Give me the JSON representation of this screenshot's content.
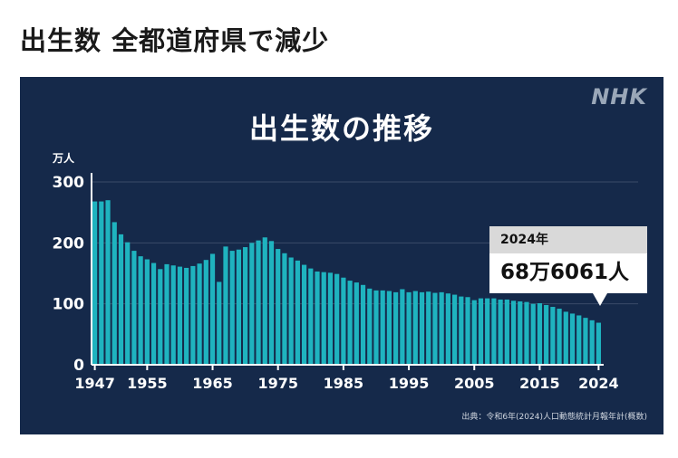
{
  "headline": "出生数 全都道府県で減少",
  "logo": "NHK",
  "source": "出典：令和6年(2024)人口動態統計月報年計(概数)",
  "colors": {
    "panel_bg": "#15294a",
    "bar": "#1fb3bf",
    "grid": "#3a4b68",
    "axis_text": "#ffffff"
  },
  "callout": {
    "year": "2024年",
    "value": "68万6061人"
  },
  "chart_data": {
    "type": "bar",
    "title": "出生数の推移",
    "ylabel": "万人",
    "xlabel": "",
    "ylim": [
      0,
      300
    ],
    "yticks": [
      0,
      100,
      200,
      300
    ],
    "xtick_labels": [
      "1947",
      "1955",
      "1965",
      "1975",
      "1985",
      "1995",
      "2005",
      "2015",
      "2024"
    ],
    "grid": true,
    "categories": [
      1947,
      1948,
      1949,
      1950,
      1951,
      1952,
      1953,
      1954,
      1955,
      1956,
      1957,
      1958,
      1959,
      1960,
      1961,
      1962,
      1963,
      1964,
      1965,
      1966,
      1967,
      1968,
      1969,
      1970,
      1971,
      1972,
      1973,
      1974,
      1975,
      1976,
      1977,
      1978,
      1979,
      1980,
      1981,
      1982,
      1983,
      1984,
      1985,
      1986,
      1987,
      1988,
      1989,
      1990,
      1991,
      1992,
      1993,
      1994,
      1995,
      1996,
      1997,
      1998,
      1999,
      2000,
      2001,
      2002,
      2003,
      2004,
      2005,
      2006,
      2007,
      2008,
      2009,
      2010,
      2011,
      2012,
      2013,
      2014,
      2015,
      2016,
      2017,
      2018,
      2019,
      2020,
      2021,
      2022,
      2023,
      2024
    ],
    "values": [
      268,
      268,
      270,
      234,
      214,
      201,
      187,
      178,
      173,
      167,
      157,
      165,
      163,
      161,
      159,
      162,
      166,
      172,
      182,
      136,
      194,
      187,
      189,
      193,
      200,
      204,
      209,
      203,
      190,
      183,
      176,
      171,
      164,
      158,
      153,
      152,
      151,
      149,
      143,
      138,
      135,
      131,
      125,
      122,
      122,
      121,
      119,
      124,
      119,
      121,
      119,
      120,
      118,
      119,
      117,
      115,
      112,
      111,
      106,
      109,
      109,
      109,
      107,
      107,
      105,
      104,
      103,
      100,
      101,
      98,
      95,
      92,
      87,
      84,
      81,
      77,
      73,
      69
    ]
  }
}
